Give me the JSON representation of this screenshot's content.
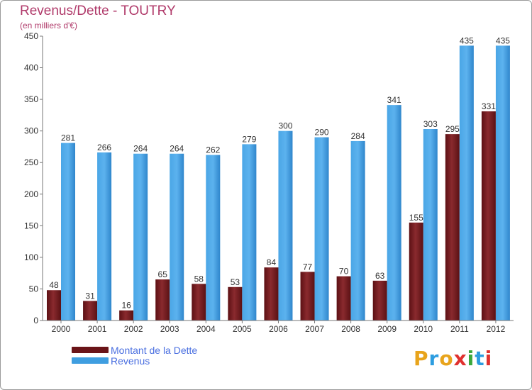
{
  "title": "Revenus/Dette - TOUTRY",
  "subtitle": "(en milliers d'€)",
  "colors": {
    "debt": "#7a1e22",
    "revenue": "#3f9ee0",
    "title": "#b03a6a",
    "legend_text": "#4a6fe0"
  },
  "legend": {
    "debt_label": "Montant de la Dette",
    "revenue_label": "Revenus"
  },
  "logo": {
    "text": "Proxiti"
  },
  "chart_data": {
    "type": "bar",
    "title": "Revenus/Dette - TOUTRY",
    "subtitle": "(en milliers d'€)",
    "categories": [
      "2000",
      "2001",
      "2002",
      "2003",
      "2004",
      "2005",
      "2006",
      "2007",
      "2008",
      "2009",
      "2010",
      "2011",
      "2012"
    ],
    "series": [
      {
        "name": "Montant de la Dette",
        "values": [
          48,
          31,
          16,
          65,
          58,
          53,
          84,
          77,
          70,
          63,
          155,
          295,
          331
        ]
      },
      {
        "name": "Revenus",
        "values": [
          281,
          266,
          264,
          264,
          262,
          279,
          300,
          290,
          284,
          341,
          303,
          435,
          435
        ]
      }
    ],
    "ylim": [
      0,
      450
    ],
    "yticks": [
      0,
      50,
      100,
      150,
      200,
      250,
      300,
      350,
      400,
      450
    ],
    "grid": false,
    "legend_position": "bottom-left"
  }
}
